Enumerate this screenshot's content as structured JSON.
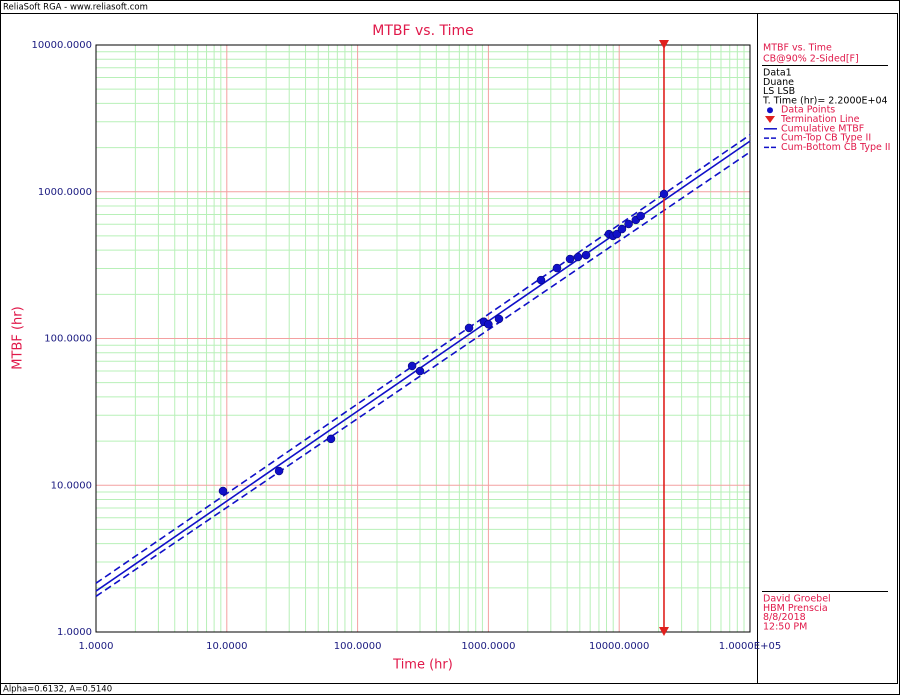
{
  "header": "ReliaSoft RGA - www.reliasoft.com",
  "footer": "Alpha=0.6132, A=0.5140",
  "chart_data": {
    "type": "scatter",
    "title": "MTBF vs. Time",
    "x_label": "Time (hr)",
    "y_label": "MTBF (hr)",
    "log_x": true,
    "log_y": true,
    "grid": true,
    "xlim": [
      1,
      100000
    ],
    "ylim": [
      1,
      10000
    ],
    "xticks": [
      {
        "value": 1,
        "label": "1.0000"
      },
      {
        "value": 10,
        "label": "10.0000"
      },
      {
        "value": 100,
        "label": "100.0000"
      },
      {
        "value": 1000,
        "label": "1000.0000"
      },
      {
        "value": 10000,
        "label": "10000.0000"
      },
      {
        "value": 100000,
        "label": "1.0000E+05"
      }
    ],
    "yticks": [
      {
        "value": 1,
        "label": "1.0000"
      },
      {
        "value": 10,
        "label": "10.0000"
      },
      {
        "value": 100,
        "label": "100.0000"
      },
      {
        "value": 1000,
        "label": "1000.0000"
      },
      {
        "value": 10000,
        "label": "10000.0000"
      }
    ],
    "confidence": "CB@90% 2-Sided[F]",
    "info": [
      "Data1",
      "Duane",
      "LS LSB",
      "T. Time (hr)= 2.2000E+04"
    ],
    "user_info": [
      "David Groebel",
      "HBM Prenscia",
      "8/8/2018",
      "12:50 PM"
    ],
    "series": [
      {
        "name": "Data Points",
        "type": "scatter",
        "color": "#1010c8",
        "x": [
          9.35,
          25.1,
          62.6,
          261,
          300,
          711,
          925,
          1000,
          1205,
          2525,
          3345,
          4206,
          4840,
          5575,
          8350,
          8970,
          9600,
          10500,
          11800,
          13400,
          14600,
          22000
        ],
        "values": [
          9.14,
          12.5,
          20.7,
          65,
          60,
          118,
          130,
          125,
          136,
          250,
          302,
          348,
          359,
          370,
          515,
          500,
          515,
          557,
          603,
          643,
          684,
          966
        ]
      },
      {
        "name": "Termination Line",
        "type": "vline",
        "color": "#e0201e",
        "x": 22000
      },
      {
        "name": "Cumulative MTBF",
        "type": "line",
        "color": "#1010c8",
        "dashed": false,
        "x": [
          1,
          100000
        ],
        "values": [
          1.9,
          2212
        ]
      },
      {
        "name": "Cum-Top CB Type II",
        "type": "line",
        "color": "#1010c8",
        "dashed": true,
        "x": [
          1,
          100000
        ],
        "values": [
          2.15,
          2438
        ]
      },
      {
        "name": "Cum-Bottom CB Type II",
        "type": "line",
        "color": "#1010c8",
        "dashed": true,
        "x": [
          1,
          100000
        ],
        "values": [
          1.75,
          1866
        ]
      }
    ]
  }
}
